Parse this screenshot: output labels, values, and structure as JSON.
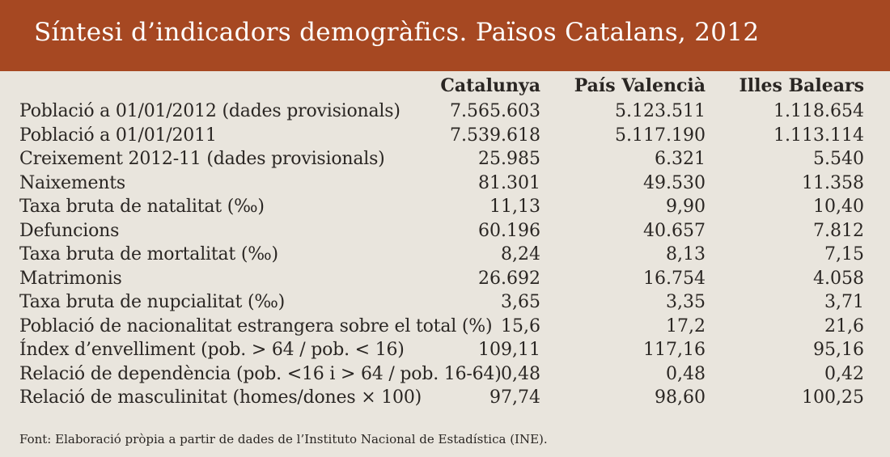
{
  "title": "Síntesi d’indicadors demogràfics. Països Catalans, 2012",
  "columns": [
    "Catalunya",
    "País Valencià",
    "Illes Balears"
  ],
  "rows": [
    {
      "label": "Població a 01/01/2012 (dades provisionals)",
      "values": [
        "7.565.603",
        "5.123.511",
        "1.118.654"
      ]
    },
    {
      "label": "Població a 01/01/2011",
      "values": [
        "7.539.618",
        "5.117.190",
        "1.113.114"
      ]
    },
    {
      "label": "Creixement 2012-11 (dades provisionals)",
      "values": [
        "25.985",
        "6.321",
        "5.540"
      ]
    },
    {
      "label": "Naixements",
      "values": [
        "81.301",
        "49.530",
        "11.358"
      ]
    },
    {
      "label": "Taxa bruta de natalitat (‰)",
      "values": [
        "11,13",
        "9,90",
        "10,40"
      ]
    },
    {
      "label": "Defuncions",
      "values": [
        "60.196",
        "40.657",
        "7.812"
      ]
    },
    {
      "label": "Taxa bruta de mortalitat (‰)",
      "values": [
        "8,24",
        "8,13",
        "7,15"
      ]
    },
    {
      "label": "Matrimonis",
      "values": [
        "26.692",
        "16.754",
        "4.058"
      ]
    },
    {
      "label": "Taxa bruta de nupcialitat (‰)",
      "values": [
        "3,65",
        "3,35",
        "3,71"
      ]
    },
    {
      "label": "Població de nacionalitat estrangera sobre el total (%)",
      "values": [
        "15,6",
        "17,2",
        "21,6"
      ]
    },
    {
      "label": "Índex d’envelliment (pob. > 64 / pob. < 16)",
      "values": [
        "109,11",
        "117,16",
        "95,16"
      ]
    },
    {
      "label": "Relació de dependència (pob. <16 i > 64 / pob. 16-64)",
      "values": [
        "0,48",
        "0,48",
        "0,42"
      ]
    },
    {
      "label": "Relació de masculinitat (homes/dones × 100)",
      "values": [
        "97,74",
        "98,60",
        "100,25"
      ]
    }
  ],
  "source": "Font: Elaboració pròpia a partir de dades de l’Instituto Nacional de Estadística (INE).",
  "colors": {
    "banner": "#a64822",
    "background": "#e9e5dd",
    "text": "#2a2623"
  }
}
